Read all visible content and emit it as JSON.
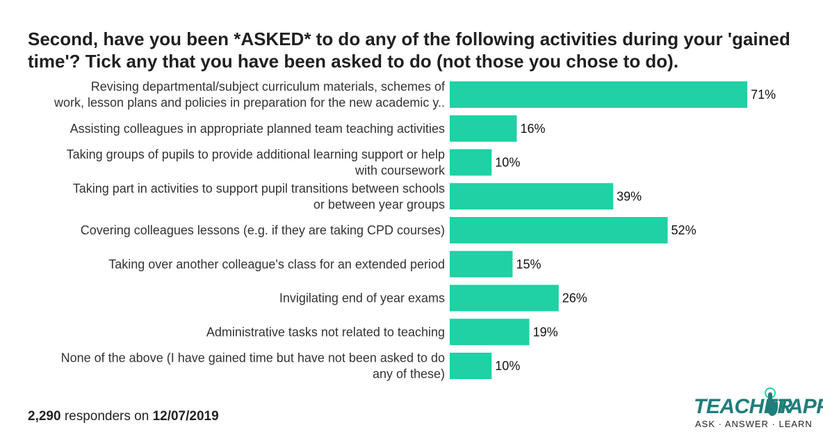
{
  "title": "Second, have you been *ASKED* to do any of the following activities during your 'gained time'? Tick any that you have been asked to do (not those you chose to do).",
  "footer": {
    "count": "2,290",
    "middle": " responders on ",
    "date": "12/07/2019"
  },
  "logo": {
    "word1": "TEACHER",
    "word2": "TAPP",
    "tagline": "ASK · ANSWER · LEARN"
  },
  "colors": {
    "bar": "#1fd1a5",
    "logo": "#1f7d7a"
  },
  "chart_data": {
    "type": "bar",
    "orientation": "horizontal",
    "categories": [
      [
        "Revising departmental/subject curriculum materials, schemes of",
        "work, lesson plans and policies in preparation for the new academic y.."
      ],
      [
        "Assisting colleagues in appropriate planned team teaching activities"
      ],
      [
        "Taking groups of pupils to provide additional learning support or help",
        "with coursework"
      ],
      [
        "Taking part in activities to support pupil transitions between schools",
        "or between year groups"
      ],
      [
        "Covering colleagues lessons (e.g. if they are taking CPD courses)"
      ],
      [
        "Taking over another colleague's class for an extended period"
      ],
      [
        "Invigilating end of year exams"
      ],
      [
        "Administrative tasks not related to teaching"
      ],
      [
        "None of the above (I have gained time but have not been asked to do",
        "any of these)"
      ]
    ],
    "values": [
      71,
      16,
      10,
      39,
      52,
      15,
      26,
      19,
      10
    ],
    "value_labels": [
      "71%",
      "16%",
      "10%",
      "39%",
      "52%",
      "15%",
      "26%",
      "19%",
      "10%"
    ],
    "unit": "%",
    "grid": false,
    "legend": "none"
  }
}
